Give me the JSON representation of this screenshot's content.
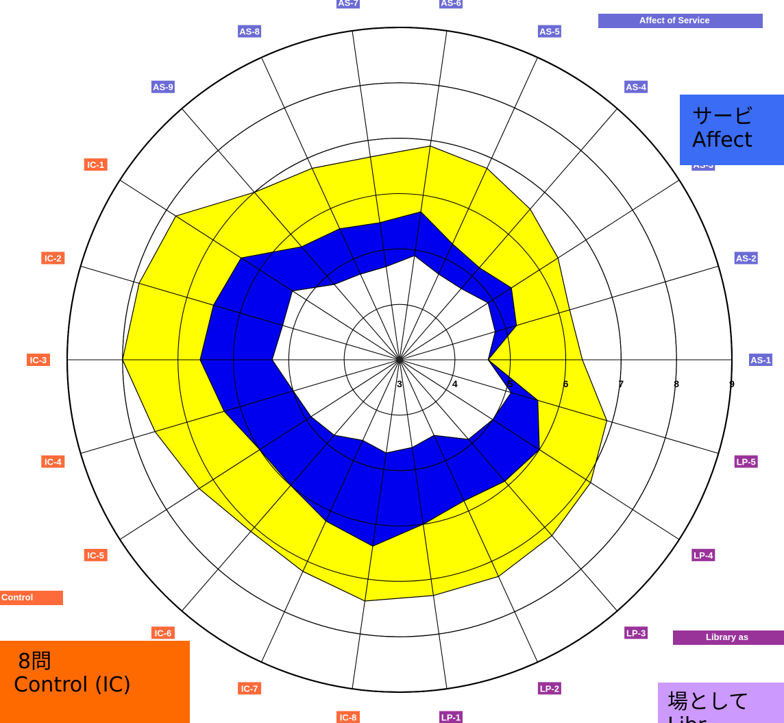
{
  "chart_data": {
    "type": "radar",
    "scale": {
      "labels": [
        "3",
        "4",
        "5",
        "6",
        "7",
        "8",
        "9"
      ],
      "min": 3,
      "max": 9
    },
    "axes": [
      "AS-1",
      "AS-2",
      "AS-3",
      "AS-4",
      "AS-5",
      "AS-6",
      "AS-7",
      "AS-8",
      "AS-9",
      "IC-1",
      "IC-2",
      "IC-3",
      "IC-4",
      "IC-5",
      "IC-6",
      "IC-7",
      "IC-8",
      "LP-1",
      "LP-2",
      "LP-3",
      "LP-4",
      "LP-5"
    ],
    "band_outer": [
      6.3,
      6.2,
      6.4,
      6.6,
      6.8,
      6.9,
      6.7,
      6.8,
      7.0,
      7.8,
      7.9,
      8.0,
      7.6,
      7.3,
      7.1,
      7.2,
      7.4,
      7.3,
      7.3,
      7.2,
      7.1,
      6.9
    ],
    "band_middle": [
      4.6,
      5.2,
      5.4,
      5.2,
      5.3,
      5.7,
      5.5,
      5.6,
      5.7,
      6.4,
      6.5,
      6.6,
      6.3,
      6.0,
      6.0,
      6.2,
      6.4,
      6.0,
      5.8,
      5.9,
      6.0,
      5.6
    ],
    "band_inner": [
      4.6,
      4.8,
      4.9,
      4.7,
      4.7,
      4.9,
      4.7,
      4.7,
      4.8,
      5.3,
      5.2,
      5.3,
      5.0,
      4.9,
      4.8,
      4.6,
      4.7,
      4.6,
      4.5,
      4.9,
      5.0,
      5.1
    ],
    "colors": {
      "outer": "#ffff00",
      "middle": "#0000ee",
      "inner": "#ffffff"
    }
  },
  "dimension_labels": {
    "affect_of_service": "Affect of Service",
    "information_control": "Control",
    "library_as_place": "Library as"
  },
  "callouts": {
    "as_line1": "サービ",
    "as_line2": "Affect",
    "ic_line1": "8問",
    "ic_line2": "Control (IC)",
    "lp_line1": "場として",
    "lp_line2": "Libr"
  },
  "colors": {
    "as": "#6b6bd6",
    "ic": "#ff6a3a",
    "lp": "#99339a",
    "as_callout": "#3a6cf5",
    "ic_callout": "#ff6a00",
    "lp_callout": "#cc99ff"
  }
}
